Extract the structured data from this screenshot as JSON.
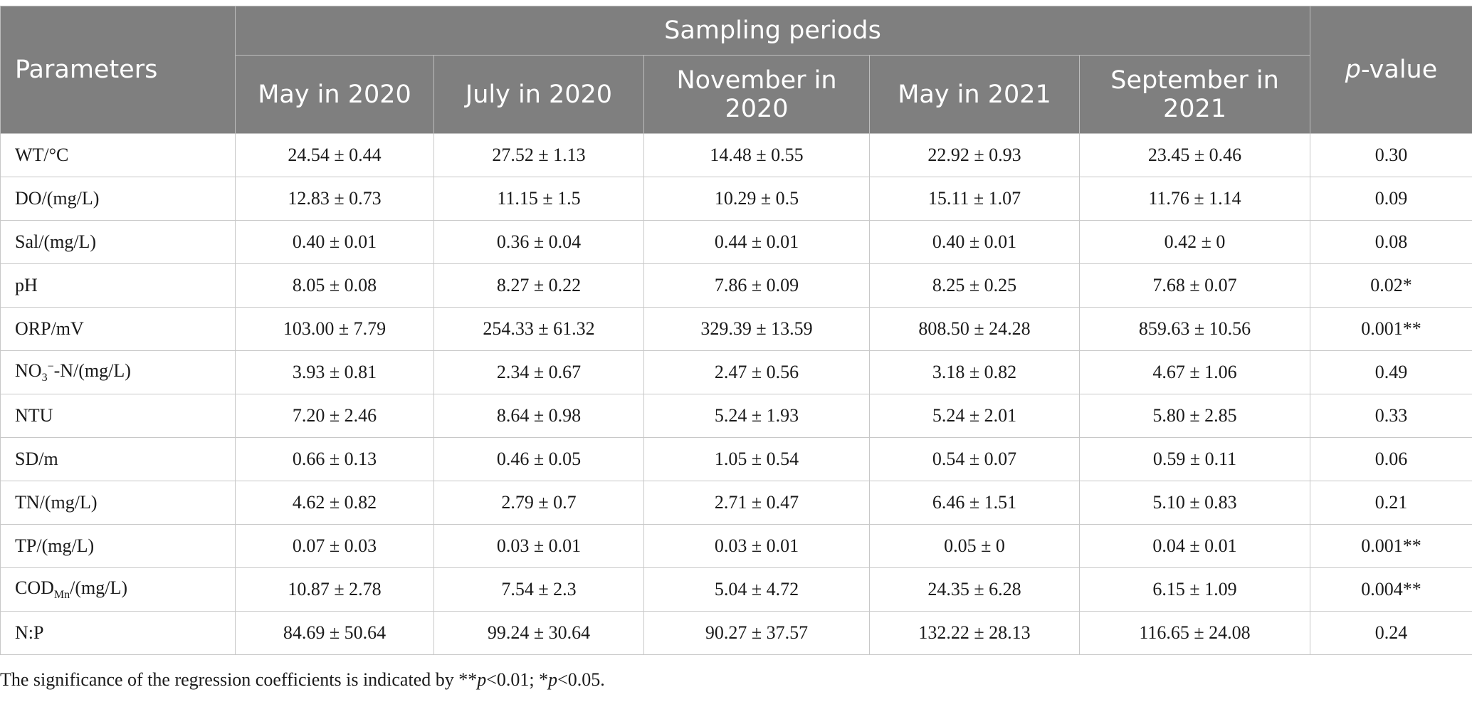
{
  "header": {
    "parameters": "Parameters",
    "sampling_periods": "Sampling periods",
    "p_value_italic": "p",
    "p_value_rest": "-value",
    "columns": [
      "May in 2020",
      "July in 2020",
      "November in 2020",
      "May in 2021",
      "September in 2021"
    ]
  },
  "rows": [
    {
      "name": "WT/°C",
      "vals": [
        "24.54 ± 0.44",
        "27.52 ± 1.13",
        "14.48 ± 0.55",
        "22.92 ± 0.93",
        "23.45 ± 0.46"
      ],
      "p": "0.30"
    },
    {
      "name": "DO/(mg/L)",
      "vals": [
        "12.83 ± 0.73",
        "11.15 ± 1.5",
        "10.29 ± 0.5",
        "15.11 ± 1.07",
        "11.76 ± 1.14"
      ],
      "p": "0.09"
    },
    {
      "name": "Sal/(mg/L)",
      "vals": [
        "0.40 ± 0.01",
        "0.36 ± 0.04",
        "0.44 ± 0.01",
        "0.40 ± 0.01",
        "0.42 ± 0"
      ],
      "p": "0.08"
    },
    {
      "name": "pH",
      "vals": [
        "8.05 ± 0.08",
        "8.27 ± 0.22",
        "7.86 ± 0.09",
        "8.25 ± 0.25",
        "7.68 ± 0.07"
      ],
      "p": "0.02*"
    },
    {
      "name": "ORP/mV",
      "vals": [
        "103.00 ± 7.79",
        "254.33 ± 61.32",
        "329.39 ± 13.59",
        "808.50 ± 24.28",
        "859.63 ± 10.56"
      ],
      "p": "0.001**"
    },
    {
      "name_a": "NO",
      "name_sub": "3",
      "name_sup": "−",
      "name_b": "-N/(mg/L)",
      "vals": [
        "3.93 ± 0.81",
        "2.34 ± 0.67",
        "2.47 ± 0.56",
        "3.18 ± 0.82",
        "4.67 ± 1.06"
      ],
      "p": "0.49"
    },
    {
      "name": "NTU",
      "vals": [
        "7.20 ± 2.46",
        "8.64 ± 0.98",
        "5.24 ± 1.93",
        "5.24 ± 2.01",
        "5.80 ± 2.85"
      ],
      "p": "0.33"
    },
    {
      "name": "SD/m",
      "vals": [
        "0.66 ± 0.13",
        "0.46 ± 0.05",
        "1.05 ± 0.54",
        "0.54 ± 0.07",
        "0.59 ± 0.11"
      ],
      "p": "0.06"
    },
    {
      "name": "TN/(mg/L)",
      "vals": [
        "4.62 ± 0.82",
        "2.79 ± 0.7",
        "2.71 ± 0.47",
        "6.46 ± 1.51",
        "5.10 ± 0.83"
      ],
      "p": "0.21"
    },
    {
      "name": "TP/(mg/L)",
      "vals": [
        "0.07 ± 0.03",
        "0.03 ± 0.01",
        "0.03 ± 0.01",
        "0.05 ± 0",
        "0.04 ± 0.01"
      ],
      "p": "0.001**"
    },
    {
      "name_a": "COD",
      "name_sub": "Mn",
      "name_b": "/(mg/L)",
      "vals": [
        "10.87 ± 2.78",
        "7.54 ± 2.3",
        "5.04 ± 4.72",
        "24.35 ± 6.28",
        "6.15 ± 1.09"
      ],
      "p": "0.004**"
    },
    {
      "name": "N:P",
      "vals": [
        "84.69 ± 50.64",
        "99.24 ± 30.64",
        "90.27 ± 37.57",
        "132.22 ± 28.13",
        "116.65 ± 24.08"
      ],
      "p": "0.24"
    }
  ],
  "footnote": {
    "t1": "The significance of the regression coefficients is indicated by **",
    "p1": "p",
    "t2": "<0.01; *",
    "p2": "p",
    "t3": "<0.05."
  }
}
